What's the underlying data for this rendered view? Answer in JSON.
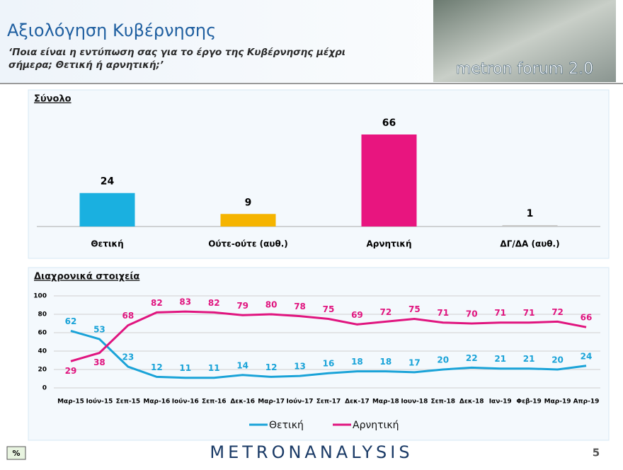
{
  "header": {
    "title": "Αξιολόγηση Κυβέρνησης",
    "subtitle_lines": [
      "‘Ποια είναι η εντύπωση σας για το έργο της Κυβέρνησης μέχρι",
      "σήμερα; Θετική ή αρνητική;’"
    ],
    "logo": "metron forum 2.0"
  },
  "chart_data": [
    {
      "type": "bar",
      "title": "Σύνολο",
      "categories": [
        "Θετική",
        "Ούτε-ούτε (αυθ.)",
        "Αρνητική",
        "ΔΓ/ΔΑ (αυθ.)"
      ],
      "values": [
        24,
        9,
        66,
        1
      ],
      "colors": [
        "#1ab0e0",
        "#f5b400",
        "#e8157f",
        "#c8c8c8"
      ]
    },
    {
      "type": "line",
      "title": "Διαχρονικά στοιχεία",
      "categories": [
        "Μαρ-15",
        "Ιούν-15",
        "Σεπ-15",
        "Μαρ-16",
        "Ιούν-16",
        "Σεπ-16",
        "Δεκ-16",
        "Μαρ-17",
        "Ιούν-17",
        "Σεπ-17",
        "Δεκ-17",
        "Μαρ-18",
        "Ιουν-18",
        "Σεπ-18",
        "Δεκ-18",
        "Ιαν-19",
        "Φεβ-19",
        "Μαρ-19",
        "Απρ-19"
      ],
      "series": [
        {
          "name": "Θετική",
          "color": "#1aa3d8",
          "values": [
            62,
            53,
            23,
            12,
            11,
            11,
            14,
            12,
            13,
            16,
            18,
            18,
            17,
            20,
            22,
            21,
            21,
            20,
            24
          ]
        },
        {
          "name": "Αρνητική",
          "color": "#e0157f",
          "values": [
            29,
            38,
            68,
            82,
            83,
            82,
            79,
            80,
            78,
            75,
            69,
            72,
            75,
            71,
            70,
            71,
            71,
            72,
            66
          ]
        }
      ],
      "ylim": [
        0,
        100
      ],
      "yticks": [
        0,
        20,
        40,
        60,
        80,
        100
      ],
      "grid": true,
      "legend": "bottom"
    }
  ],
  "footer": {
    "brand": "METRONANALYSIS",
    "page": "5",
    "badge": "%"
  }
}
